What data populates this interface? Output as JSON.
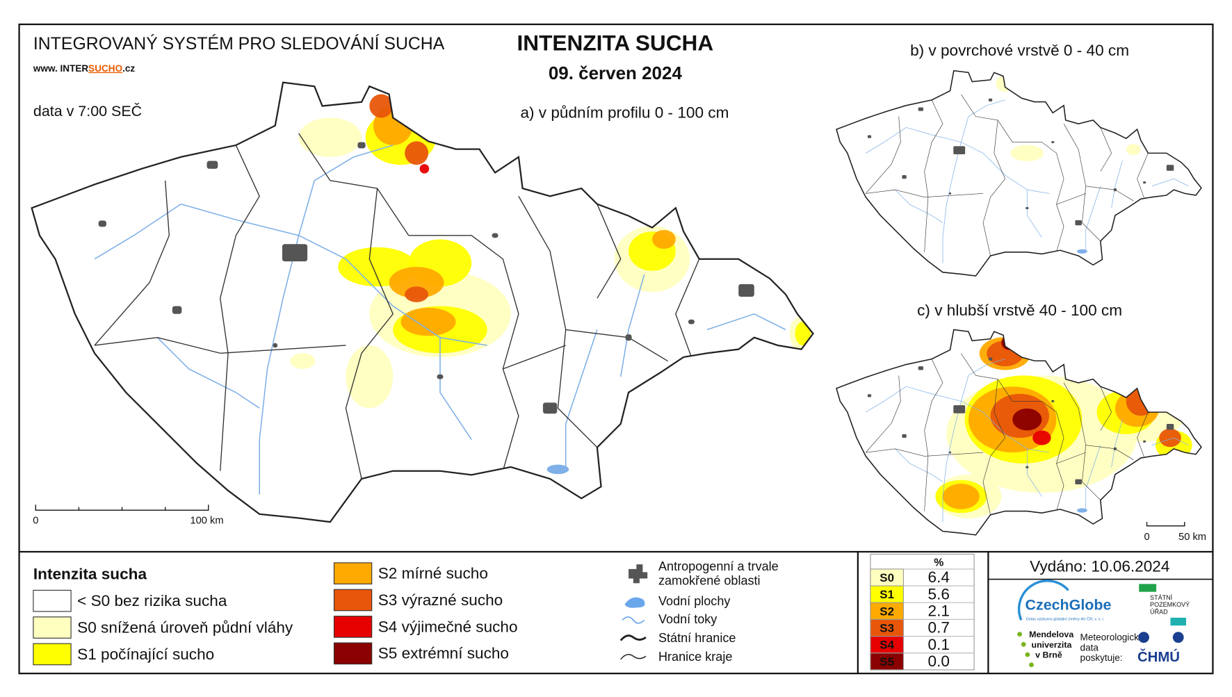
{
  "header": {
    "system": "INTEGROVANÝ SYSTÉM PRO SLEDOVÁNÍ SUCHA",
    "web_prefix": "www. INTER",
    "web_mid": "SUCHO",
    "web_suffix": ".cz",
    "data_time": "data v 7:00 SEČ"
  },
  "title": "INTENZITA SUCHA",
  "date": "09. červen 2024",
  "maps": {
    "a": "a) v půdním profilu 0 - 100 cm",
    "b": "b) v povrchové vrstvě 0 - 40 cm",
    "c": "c) v hlubší vrstvě 40 - 100 cm"
  },
  "scale_main": {
    "start": "0",
    "end": "100 km"
  },
  "scale_small": {
    "start": "0",
    "end": "50 km"
  },
  "legend": {
    "title": "Intenzita sucha",
    "items": [
      {
        "label": "< S0 bez rizika sucha",
        "color": "#ffffff"
      },
      {
        "label": "S0 snížená úroveň půdní vláhy",
        "color": "#ffffc0"
      },
      {
        "label": "S1 počínající sucho",
        "color": "#ffff00"
      },
      {
        "label": "S2 mírné sucho",
        "color": "#ffaa00"
      },
      {
        "label": "S3 výrazné sucho",
        "color": "#e8560a"
      },
      {
        "label": "S4 výjimečné sucho",
        "color": "#e60000"
      },
      {
        "label": "S5 extrémní sucho",
        "color": "#8b0000"
      }
    ]
  },
  "symbols": [
    {
      "lines": [
        "Antropogenní a trvale",
        "zamokřené oblasti"
      ]
    },
    {
      "lines": [
        "Vodní plochy"
      ]
    },
    {
      "lines": [
        "Vodní toky"
      ]
    },
    {
      "lines": [
        "Státní hranice"
      ]
    },
    {
      "lines": [
        "Hranice kraje"
      ]
    }
  ],
  "table": {
    "header": "%",
    "rows": [
      {
        "class": "S0",
        "percent": "6.4",
        "color": "#ffffc0"
      },
      {
        "class": "S1",
        "percent": "5.6",
        "color": "#ffff00"
      },
      {
        "class": "S2",
        "percent": "2.1",
        "color": "#ffaa00"
      },
      {
        "class": "S3",
        "percent": "0.7",
        "color": "#e8560a"
      },
      {
        "class": "S4",
        "percent": "0.1",
        "color": "#e60000"
      },
      {
        "class": "S5",
        "percent": "0.0",
        "color": "#8b0000"
      }
    ]
  },
  "issued": "Vydáno: 10.06.2024",
  "logos": {
    "czechglobe": "CzechGlobe",
    "czechglobe_sub": "Ústav výzkumu globální změny AV ČR, v. v. i.",
    "spu": [
      "STÁTNÍ",
      "POZEMKOVÝ",
      "ÚŘAD"
    ],
    "mendel": [
      "Mendelova",
      "univerzita",
      "v Brně"
    ],
    "meteo": [
      "Meteorologická",
      "data",
      "poskytuje:"
    ],
    "chmu": "ČHMÚ"
  }
}
